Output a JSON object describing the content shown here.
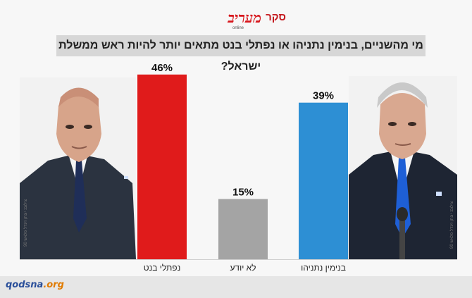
{
  "header": {
    "logo_text": "מעריב",
    "logo_suffix": "סקר",
    "logo_online": "online"
  },
  "title": "מי מהשניים, בנימין נתניהו או נפתלי בנט מתאים יותר להיות ראש ממשלת ישראל?",
  "photos": {
    "left_credit": "צילום: יונתן זינדל פלאש 90",
    "right_credit": "צילום: יונתן זינדל פלאש 90"
  },
  "watermark": {
    "main": "qodsna",
    "suffix": ".org"
  },
  "colors": {
    "bennett": "#e01b1b",
    "dont_know": "#a4a4a4",
    "netanyahu": "#2d8fd4",
    "brand_red": "#d7161c"
  },
  "chart_data": {
    "type": "bar",
    "title": "מי מהשניים, בנימין נתניהו או נפתלי בנט מתאים יותר להיות ראש ממשלת ישראל?",
    "categories": [
      "נפתלי בנט",
      "לא יודע",
      "בנימין נתניהו"
    ],
    "values": [
      46,
      15,
      39
    ],
    "value_labels": [
      "46%",
      "15%",
      "39%"
    ],
    "unit": "%",
    "ylim": [
      0,
      50
    ],
    "grid": false,
    "legend": "none"
  }
}
